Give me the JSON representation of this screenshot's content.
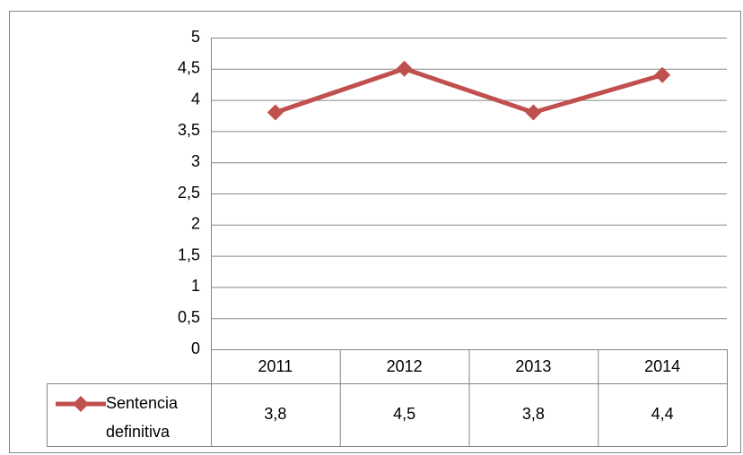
{
  "chart_data": {
    "type": "line",
    "categories": [
      "2011",
      "2012",
      "2013",
      "2014"
    ],
    "series": [
      {
        "name": "Sentencia definitiva",
        "color": "#c0504d",
        "values": [
          3.8,
          4.5,
          3.8,
          4.4
        ],
        "value_labels": [
          "3,8",
          "4,5",
          "3,8",
          "4,4"
        ]
      }
    ],
    "ylim": [
      0,
      5
    ],
    "yticks": [
      0,
      {
        "value": 0.5,
        "label": "0,5"
      },
      1,
      {
        "value": 1.5,
        "label": "1,5"
      },
      2,
      {
        "value": 2.5,
        "label": "2,5"
      },
      3,
      {
        "value": 3.5,
        "label": "3,5"
      },
      4,
      {
        "value": 4.5,
        "label": "4,5"
      },
      5
    ],
    "grid": true
  }
}
